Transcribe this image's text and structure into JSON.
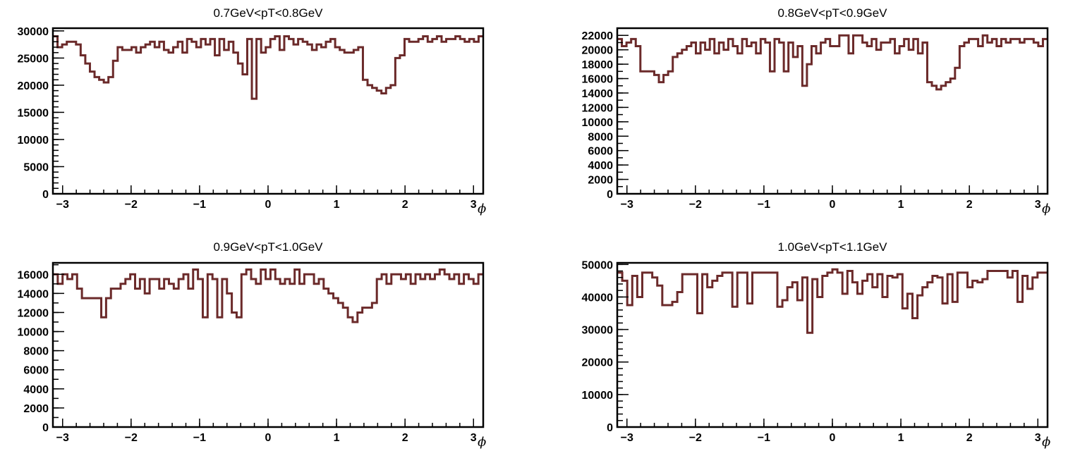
{
  "chart_data": [
    {
      "type": "histogram-step",
      "title": "0.7GeV<pT<0.8GeV",
      "xlabel": "ϕ",
      "ylabel": "",
      "xlim": [
        -3.1416,
        3.1416
      ],
      "ylim": [
        0,
        30500
      ],
      "x_ticks": [
        "−3",
        "−2",
        "−1",
        "0",
        "1",
        "2",
        "3"
      ],
      "y_ticks": [
        "0",
        "5000",
        "10000",
        "15000",
        "20000",
        "25000",
        "30000"
      ],
      "line_color": "#6b2a2a",
      "values": [
        29000,
        27000,
        27500,
        28000,
        28000,
        27500,
        25500,
        24000,
        22500,
        21500,
        21000,
        20500,
        21500,
        24500,
        27000,
        26500,
        26500,
        27000,
        26000,
        27000,
        27500,
        28000,
        27000,
        28000,
        26500,
        26000,
        27000,
        28000,
        26000,
        28500,
        28000,
        27000,
        28500,
        27500,
        28500,
        25500,
        28500,
        26500,
        28000,
        26000,
        24000,
        22000,
        28500,
        17500,
        28500,
        26000,
        27000,
        28500,
        29000,
        26500,
        29000,
        28500,
        27500,
        28500,
        28000,
        27500,
        26500,
        27500,
        27000,
        28000,
        28500,
        27000,
        26500,
        26000,
        26000,
        26500,
        27000,
        21000,
        20000,
        19500,
        19000,
        18500,
        19500,
        20000,
        25000,
        25500,
        28500,
        28000,
        28000,
        28500,
        29000,
        28000,
        28500,
        29000,
        28000,
        28500,
        28500,
        29000,
        28500,
        28000,
        28500,
        28000,
        29000
      ]
    },
    {
      "type": "histogram-step",
      "title": "0.8GeV<pT<0.9GeV",
      "xlabel": "ϕ",
      "ylabel": "",
      "xlim": [
        -3.1416,
        3.1416
      ],
      "ylim": [
        0,
        23000
      ],
      "x_ticks": [
        "−3",
        "−2",
        "−1",
        "0",
        "1",
        "2",
        "3"
      ],
      "y_ticks": [
        "0",
        "2000",
        "4000",
        "6000",
        "8000",
        "10000",
        "12000",
        "14000",
        "16000",
        "18000",
        "20000",
        "22000"
      ],
      "line_color": "#6b2a2a",
      "values": [
        21500,
        20500,
        21000,
        21500,
        20500,
        17000,
        17000,
        17000,
        16500,
        15500,
        16500,
        17000,
        19000,
        19500,
        20000,
        20500,
        21000,
        19500,
        21000,
        20000,
        21500,
        19500,
        21000,
        20000,
        21500,
        20500,
        19500,
        21500,
        20500,
        21000,
        19500,
        21500,
        21000,
        17000,
        21500,
        21000,
        17000,
        21000,
        19000,
        20500,
        15000,
        18000,
        20500,
        19500,
        21000,
        21500,
        20500,
        20500,
        22000,
        22000,
        19500,
        22000,
        22000,
        21000,
        20500,
        21500,
        20000,
        21000,
        21000,
        21500,
        19500,
        20500,
        21500,
        20000,
        21500,
        19500,
        21000,
        15500,
        15000,
        14500,
        15000,
        15500,
        16000,
        17500,
        20500,
        21000,
        21500,
        21500,
        20500,
        22000,
        21000,
        21500,
        20500,
        21500,
        21000,
        21500,
        21500,
        21000,
        21500,
        21500,
        21000,
        20500,
        21500
      ]
    },
    {
      "type": "histogram-step",
      "title": "0.9GeV<pT<1.0GeV",
      "xlabel": "ϕ",
      "ylabel": "",
      "xlim": [
        -3.1416,
        3.1416
      ],
      "ylim": [
        0,
        17200
      ],
      "x_ticks": [
        "−3",
        "−2",
        "−1",
        "0",
        "1",
        "2",
        "3"
      ],
      "y_ticks": [
        "0",
        "2000",
        "4000",
        "6000",
        "8000",
        "10000",
        "12000",
        "14000",
        "16000"
      ],
      "line_color": "#6b2a2a",
      "values": [
        16000,
        15000,
        16000,
        15500,
        16000,
        14500,
        13500,
        13500,
        13500,
        13500,
        11500,
        13500,
        14500,
        14500,
        15000,
        15500,
        16000,
        14500,
        15500,
        14000,
        15500,
        15500,
        14500,
        15500,
        15000,
        14500,
        15500,
        16000,
        14500,
        16500,
        15500,
        11500,
        16000,
        15500,
        11500,
        15500,
        14000,
        12000,
        11500,
        16000,
        16500,
        15500,
        15000,
        16500,
        15500,
        16500,
        15500,
        15000,
        15500,
        15000,
        16500,
        15000,
        16000,
        16000,
        15000,
        15500,
        14500,
        14000,
        13500,
        13000,
        12500,
        11500,
        11000,
        12000,
        12500,
        12500,
        13000,
        15500,
        16000,
        15000,
        16000,
        16000,
        15500,
        16000,
        15000,
        16000,
        15500,
        16000,
        15500,
        16000,
        16500,
        16000,
        15500,
        16000,
        15000,
        16000,
        15500,
        15000,
        16000
      ]
    },
    {
      "type": "histogram-step",
      "title": "1.0GeV<pT<1.1GeV",
      "xlabel": "ϕ",
      "ylabel": "",
      "xlim": [
        -3.1416,
        3.1416
      ],
      "ylim": [
        0,
        50500
      ],
      "x_ticks": [
        "−3",
        "−2",
        "−1",
        "0",
        "1",
        "2",
        "3"
      ],
      "y_ticks": [
        "0",
        "10000",
        "20000",
        "30000",
        "40000",
        "50000"
      ],
      "line_color": "#6b2a2a",
      "values": [
        47500,
        45000,
        37500,
        46500,
        40000,
        47500,
        47500,
        46000,
        43500,
        37500,
        37500,
        38500,
        41500,
        47000,
        47000,
        47000,
        35000,
        47000,
        43000,
        45000,
        46500,
        47500,
        47500,
        37000,
        47500,
        47500,
        38000,
        47500,
        47500,
        47500,
        47500,
        47500,
        37000,
        39000,
        43000,
        44500,
        39000,
        46000,
        29000,
        45500,
        40000,
        46500,
        47500,
        48500,
        47500,
        41000,
        48000,
        44500,
        41000,
        45000,
        47000,
        43000,
        47000,
        40000,
        46500,
        46000,
        47000,
        36500,
        41000,
        33500,
        40500,
        43000,
        44500,
        46500,
        46000,
        38000,
        47000,
        38500,
        47500,
        47500,
        43000,
        45000,
        44500,
        45500,
        48000,
        48000,
        48000,
        48000,
        46000,
        48000,
        38500,
        46500,
        42500,
        46000,
        47500,
        47500
      ]
    }
  ]
}
